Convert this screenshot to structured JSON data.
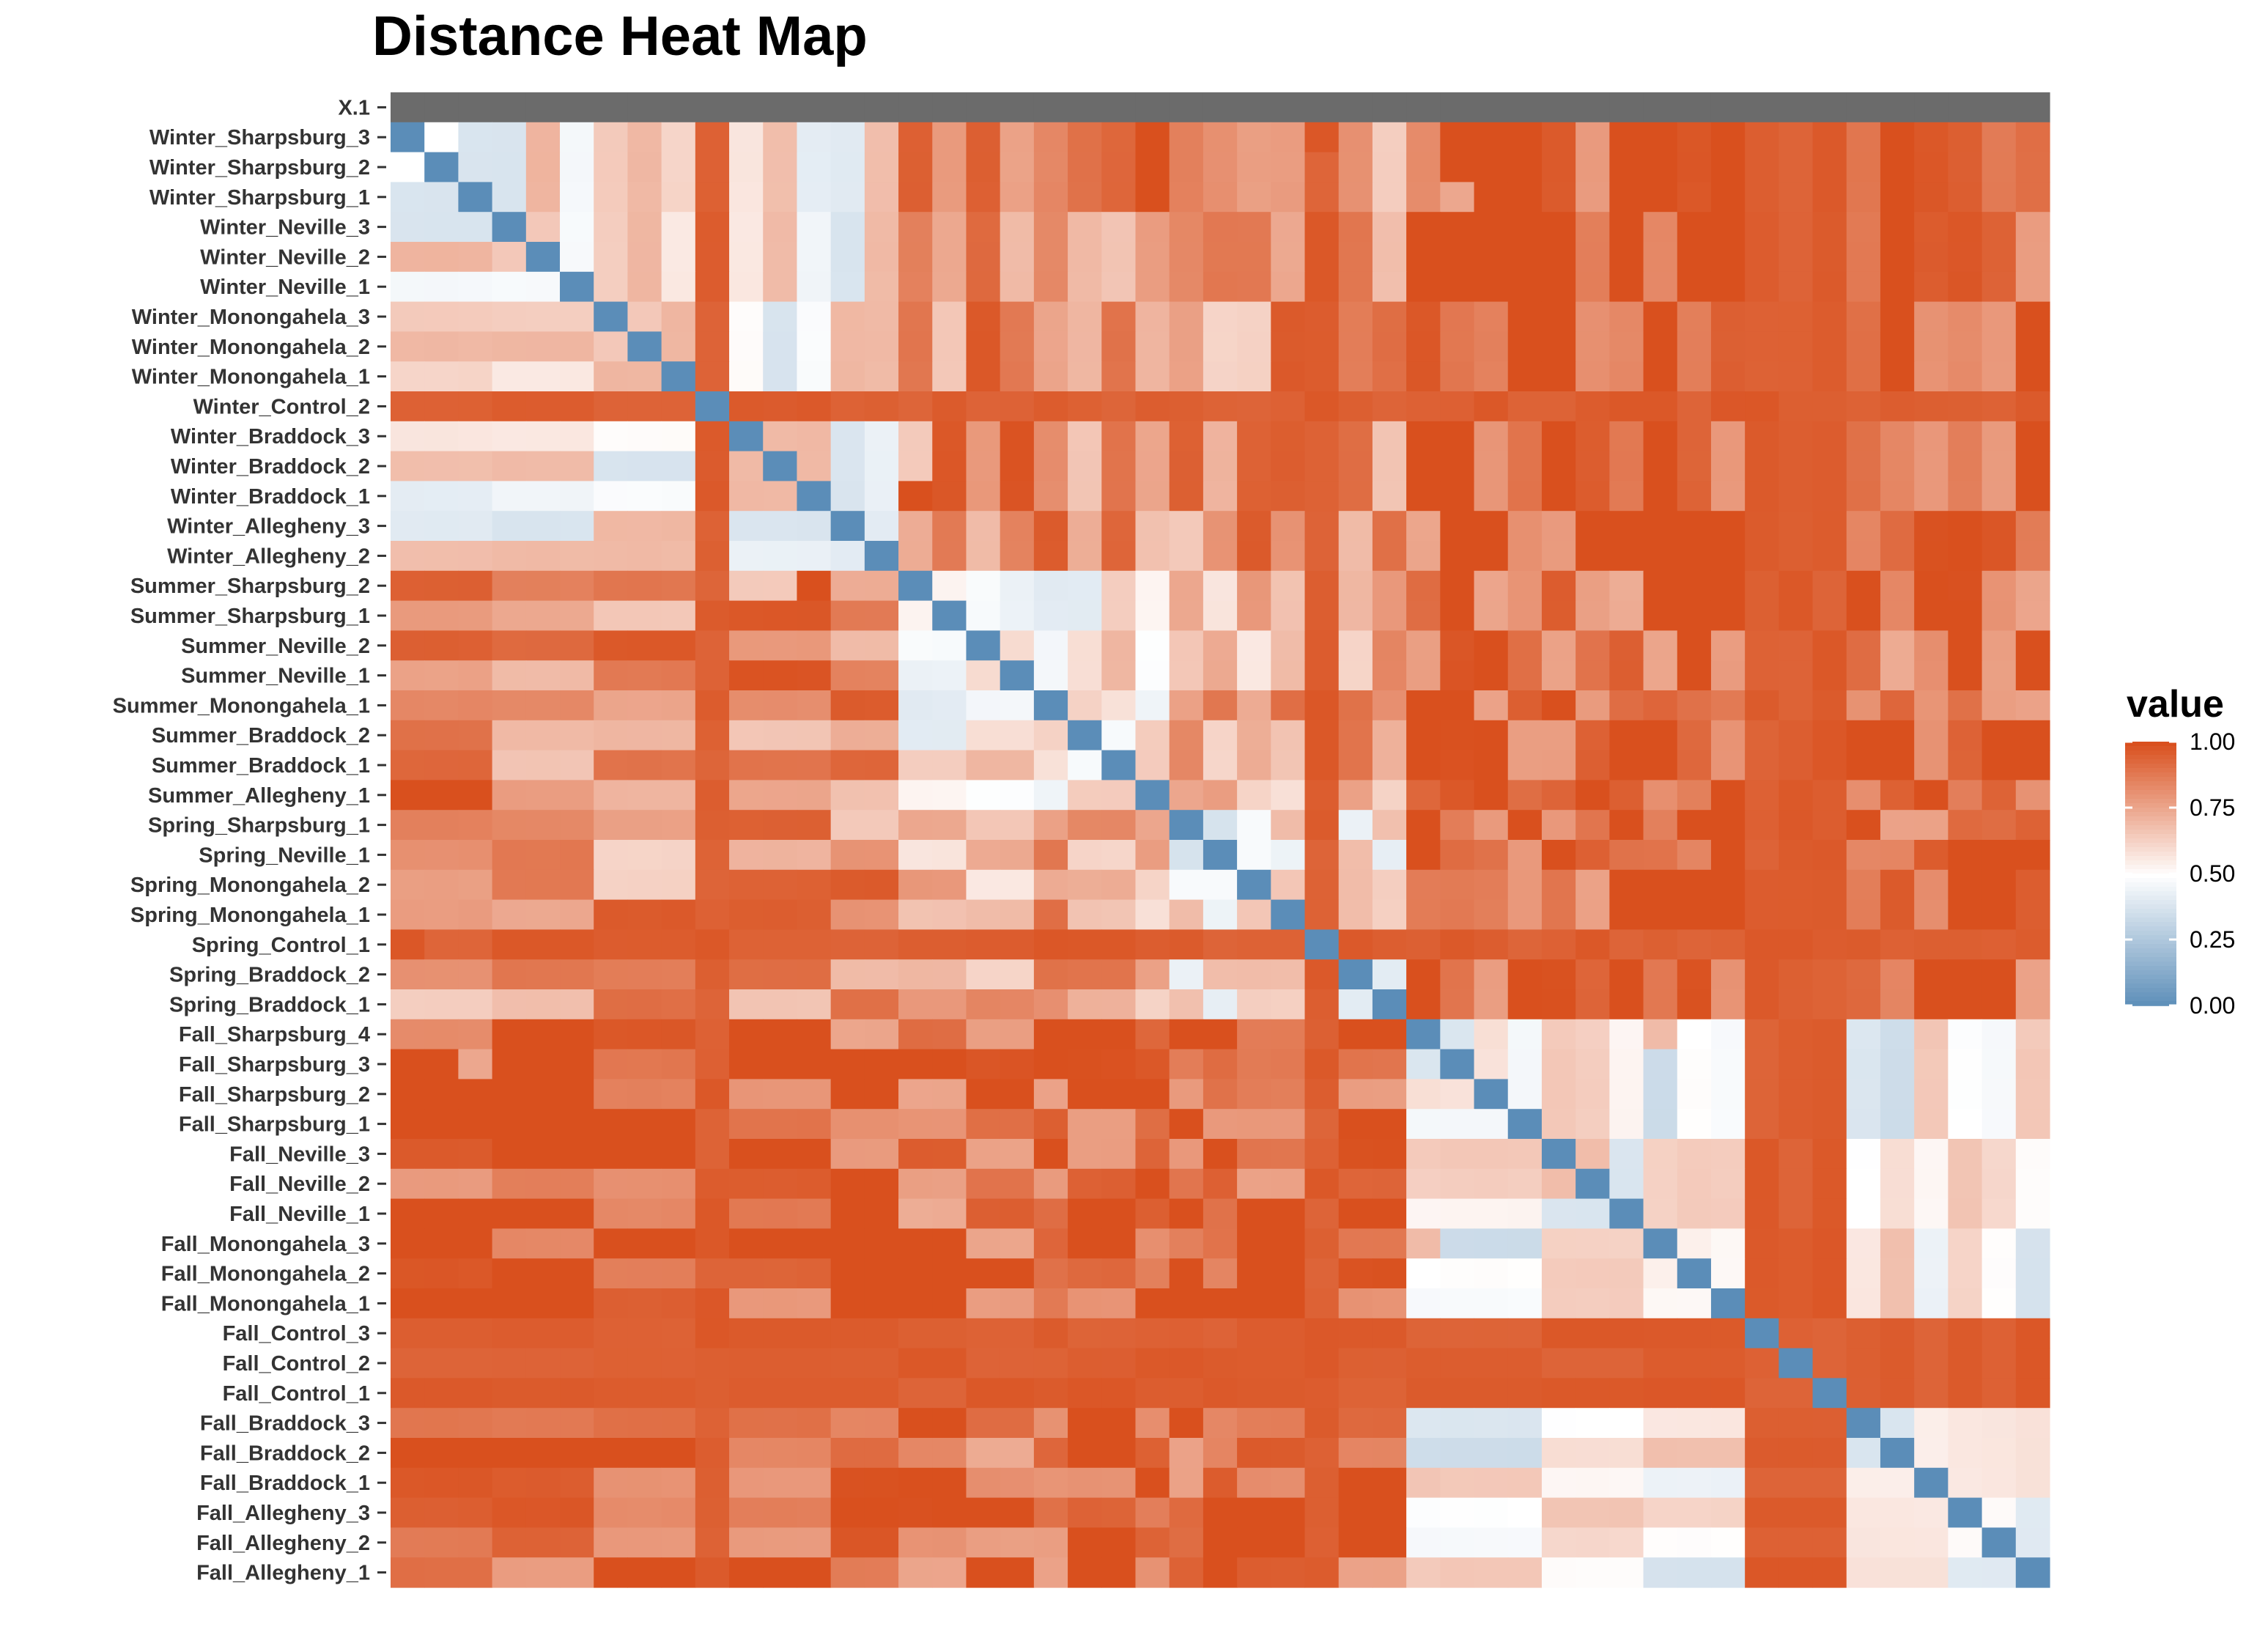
{
  "chart_data": {
    "type": "heatmap",
    "title": "Distance Heat Map",
    "ylabel": "",
    "xlabel": "",
    "rows": [
      "X.1",
      "Winter_Sharpsburg_3",
      "Winter_Sharpsburg_2",
      "Winter_Sharpsburg_1",
      "Winter_Neville_3",
      "Winter_Neville_2",
      "Winter_Neville_1",
      "Winter_Monongahela_3",
      "Winter_Monongahela_2",
      "Winter_Monongahela_1",
      "Winter_Control_2",
      "Winter_Braddock_3",
      "Winter_Braddock_2",
      "Winter_Braddock_1",
      "Winter_Allegheny_3",
      "Winter_Allegheny_2",
      "Summer_Sharpsburg_2",
      "Summer_Sharpsburg_1",
      "Summer_Neville_2",
      "Summer_Neville_1",
      "Summer_Monongahela_1",
      "Summer_Braddock_2",
      "Summer_Braddock_1",
      "Summer_Allegheny_1",
      "Spring_Sharpsburg_1",
      "Spring_Neville_1",
      "Spring_Monongahela_2",
      "Spring_Monongahela_1",
      "Spring_Control_1",
      "Spring_Braddock_2",
      "Spring_Braddock_1",
      "Fall_Sharpsburg_4",
      "Fall_Sharpsburg_3",
      "Fall_Sharpsburg_2",
      "Fall_Sharpsburg_1",
      "Fall_Neville_3",
      "Fall_Neville_2",
      "Fall_Neville_1",
      "Fall_Monongahela_3",
      "Fall_Monongahela_2",
      "Fall_Monongahela_1",
      "Fall_Control_3",
      "Fall_Control_2",
      "Fall_Control_1",
      "Fall_Braddock_3",
      "Fall_Braddock_2",
      "Fall_Braddock_1",
      "Fall_Allegheny_3",
      "Fall_Allegheny_2",
      "Fall_Allegheny_1"
    ],
    "na_row": "X.1",
    "na_color": "#6b6b6b",
    "groups": [
      "Fall",
      "Spring",
      "Summer",
      "Winter"
    ],
    "group_distance": {
      "Fall": {
        "Fall": 0.52,
        "Spring": 0.93,
        "Summer": 0.91,
        "Winter": 0.93
      },
      "Spring": {
        "Fall": 0.93,
        "Spring": 0.55,
        "Summer": 0.74,
        "Winter": 0.8
      },
      "Summer": {
        "Fall": 0.91,
        "Spring": 0.74,
        "Summer": 0.55,
        "Winter": 0.83
      },
      "Winter": {
        "Fall": 0.93,
        "Spring": 0.8,
        "Summer": 0.83,
        "Winter": 0.55
      }
    },
    "control_distance": 0.98,
    "diagonal_value": 0.0,
    "color_scale": {
      "low": "#5b8db8",
      "mid": "#ffffff",
      "high": "#d9501e",
      "midpoint": 0.5,
      "limits": [
        0,
        1
      ]
    },
    "legend": {
      "title": "value",
      "position": "right",
      "ticks": [
        "1.00",
        "0.75",
        "0.50",
        "0.25",
        "0.00"
      ]
    }
  }
}
